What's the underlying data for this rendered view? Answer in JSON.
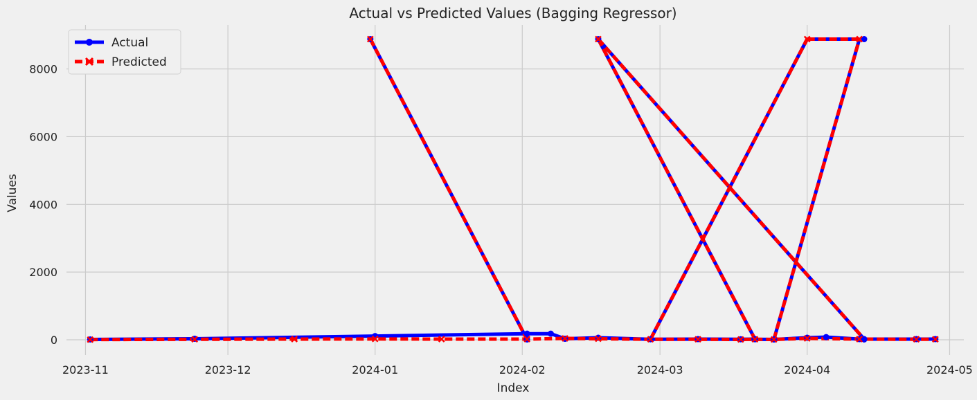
{
  "chart_data": {
    "type": "line",
    "title": "Actual vs Predicted Values (Bagging Regressor)",
    "xlabel": "Index",
    "ylabel": "Values",
    "x_tick_labels": [
      "2023-11",
      "2023-12",
      "2024-01",
      "2024-02",
      "2024-03",
      "2024-04",
      "2024-05"
    ],
    "x_tick_dates": [
      "2023-11-01",
      "2023-12-01",
      "2024-01-01",
      "2024-02-01",
      "2024-03-01",
      "2024-04-01",
      "2024-05-01"
    ],
    "xlim": [
      "2023-10-28",
      "2024-05-04"
    ],
    "y_ticks": [
      0,
      2000,
      4000,
      6000,
      8000
    ],
    "ylim": [
      -450,
      9300
    ],
    "grid": true,
    "legend_position": "top-left",
    "series": [
      {
        "name": "Actual",
        "color": "#0000ff",
        "style": "solid",
        "marker": "circle",
        "x": [
          "2023-11-02",
          "2023-11-24",
          "2024-01-01",
          "2024-02-02",
          "2024-02-07",
          "2024-02-10",
          "2024-02-17",
          "2024-02-28",
          "2024-03-09",
          "2024-03-18",
          "2024-03-21",
          "2024-03-21",
          "2024-03-25",
          "2024-04-01",
          "2024-04-05",
          "2024-04-12",
          "2024-04-13",
          "2024-04-24",
          "2024-04-28",
          "2023-12-31",
          "2024-02-02",
          "2024-02-17",
          "2024-03-21",
          "2024-03-25",
          "2024-04-13",
          "2024-04-13"
        ],
        "y": [
          10,
          30,
          110,
          180,
          180,
          30,
          60,
          15,
          20,
          15,
          20,
          15,
          10,
          60,
          80,
          20,
          20,
          20,
          20,
          8880,
          10,
          8880,
          20,
          10,
          8880,
          10
        ]
      },
      {
        "name": "Predicted",
        "color": "#ff0000",
        "style": "dashed",
        "marker": "x",
        "x": [
          "2023-11-02",
          "2023-11-24",
          "2023-12-15",
          "2024-01-01",
          "2024-01-15",
          "2024-02-02",
          "2024-02-10",
          "2024-02-17",
          "2024-02-28",
          "2024-03-09",
          "2024-03-18",
          "2024-03-21",
          "2024-03-25",
          "2024-04-01",
          "2024-04-12",
          "2024-04-24",
          "2024-04-28"
        ],
        "y": [
          5,
          15,
          20,
          25,
          20,
          20,
          40,
          30,
          15,
          15,
          10,
          15,
          10,
          40,
          20,
          15,
          15
        ]
      }
    ],
    "jumps": [
      {
        "x": [
          "2023-12-31",
          "2024-02-02"
        ],
        "y": [
          8880,
          10
        ]
      },
      {
        "x": [
          "2024-02-17",
          "2024-03-21"
        ],
        "y": [
          8880,
          20
        ]
      },
      {
        "x": [
          "2024-02-17",
          "2024-04-13"
        ],
        "y": [
          8880,
          20
        ]
      },
      {
        "x": [
          "2024-02-28",
          "2024-04-01"
        ],
        "y": [
          15,
          8880
        ]
      },
      {
        "x": [
          "2024-04-01",
          "2024-04-12"
        ],
        "y": [
          8880,
          8880
        ]
      },
      {
        "x": [
          "2024-03-25",
          "2024-04-12"
        ],
        "y": [
          10,
          8880
        ]
      }
    ]
  }
}
